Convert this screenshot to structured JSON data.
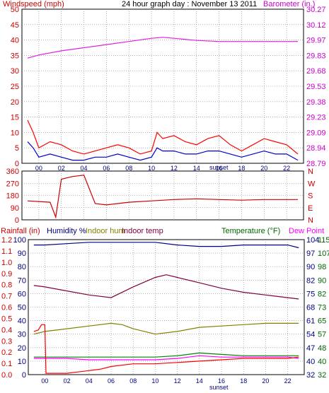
{
  "chart_data": [
    {
      "type": "line",
      "title": "24 hour graph day : November 13 2011",
      "ylabel_left": "Windspeed (mph)",
      "ylabel_right": "Barometer (in.)",
      "left_ticks": [
        "50",
        "45",
        "40",
        "35",
        "30",
        "25",
        "20",
        "15",
        "10",
        "5",
        "0"
      ],
      "right_ticks": [
        "30.27",
        "30.12",
        "29.97",
        "29.83",
        "29.68",
        "29.53",
        "29.38",
        "29.23",
        "29.09",
        "28.94",
        "28.79"
      ],
      "x_ticks": [
        "00",
        "02",
        "04",
        "06",
        "08",
        "10",
        "12",
        "14",
        "16",
        "18",
        "20",
        "22"
      ],
      "x_annotation": "sunset",
      "ylim_left": [
        0,
        50
      ],
      "ylim_right": [
        28.79,
        30.27
      ],
      "grid": true,
      "colors": {
        "wind_gust": "#ff0000",
        "wind_avg": "#0000cc",
        "barometer": "#e020e0",
        "left_axis": "#cc0000",
        "right_axis": "#cc00cc"
      },
      "series": [
        {
          "name": "Barometer (in.)",
          "x": [
            -1,
            0,
            2,
            4,
            6,
            8,
            10,
            11,
            12,
            14,
            16,
            18,
            20,
            22,
            23
          ],
          "values": [
            29.8,
            29.83,
            29.87,
            29.9,
            29.93,
            29.96,
            29.99,
            30.0,
            29.99,
            29.97,
            29.96,
            29.96,
            29.96,
            29.96,
            29.96
          ]
        },
        {
          "name": "Gust",
          "x": [
            -1,
            -0.5,
            0,
            1,
            2,
            3,
            4,
            5,
            6,
            7,
            8,
            9,
            10,
            10.5,
            11,
            12,
            13,
            14,
            15,
            16,
            17,
            18,
            19,
            20,
            21,
            22,
            23
          ],
          "values": [
            14,
            10,
            5,
            7,
            6,
            4,
            3,
            4,
            5,
            6,
            5,
            3,
            4,
            10,
            8,
            9,
            7,
            6,
            8,
            9,
            6,
            4,
            6,
            8,
            7,
            6,
            3
          ]
        },
        {
          "name": "Average",
          "x": [
            -1,
            -0.5,
            0,
            1,
            2,
            3,
            4,
            5,
            6,
            7,
            8,
            9,
            10,
            10.5,
            11,
            12,
            13,
            14,
            15,
            16,
            17,
            18,
            19,
            20,
            21,
            22,
            23
          ],
          "values": [
            7,
            5,
            2,
            3,
            2,
            1,
            1,
            2,
            2,
            3,
            2,
            1,
            2,
            5,
            4,
            4,
            3,
            3,
            4,
            4,
            3,
            2,
            3,
            4,
            3,
            3,
            1
          ]
        }
      ]
    },
    {
      "type": "line",
      "ylabel": "Wind direction",
      "left_ticks": [
        "360",
        "270",
        "180",
        "90",
        "0"
      ],
      "right_ticks": [
        "N",
        "W",
        "S",
        "E",
        "N"
      ],
      "ylim": [
        0,
        360
      ],
      "colors": {
        "direction": "#cc0000"
      },
      "series": [
        {
          "name": "Direction",
          "x": [
            -1,
            1,
            1.5,
            2,
            3,
            4,
            5,
            6,
            8,
            10,
            12,
            14,
            16,
            18,
            20,
            22,
            23
          ],
          "values": [
            140,
            130,
            20,
            300,
            320,
            330,
            120,
            110,
            130,
            140,
            150,
            155,
            150,
            145,
            150,
            150,
            150
          ]
        }
      ]
    },
    {
      "type": "line",
      "labels_left": [
        "Rainfall (in)",
        "Humidity %",
        "Indoor hum",
        "Indoor temp"
      ],
      "labels_right": [
        "Temperature (°F)",
        "Dew Point"
      ],
      "rain_ticks": [
        "1.2",
        "1.1",
        "1.0",
        "0.9",
        "0.8",
        "0.7",
        "0.6",
        "0.5",
        "0.4",
        "0.3",
        "0.2",
        "0.1",
        "0.0"
      ],
      "hum_ticks": [
        "100",
        "90",
        "80",
        "70",
        "60",
        "50",
        "40",
        "30",
        "20",
        "10",
        "0"
      ],
      "in_temp_ticks": [
        "104",
        "97",
        "90",
        "82",
        "75",
        "68",
        "61",
        "54",
        "47",
        "40",
        "32"
      ],
      "temp_ticks": [
        "115",
        "107",
        "98",
        "90",
        "82",
        "73",
        "65",
        "57",
        "48",
        "40",
        "32"
      ],
      "x_ticks": [
        "00",
        "02",
        "04",
        "06",
        "08",
        "10",
        "12",
        "14",
        "16",
        "18",
        "20",
        "22"
      ],
      "x_annotation": "sunset",
      "ylim_left": [
        0,
        100
      ],
      "colors": {
        "rain": "#ff0000",
        "humidity": "#000080",
        "indoor_hum": "#808000",
        "indoor_temp": "#800040",
        "temperature": "#008000",
        "dew_point": "#ff00ff",
        "rain_axis": "#cc0000",
        "hum_axis": "#000080",
        "temp_axis": "#006600"
      },
      "series": [
        {
          "name": "Humidity",
          "x": [
            -1,
            0,
            2,
            4,
            6,
            8,
            10,
            12,
            14,
            16,
            18,
            20,
            22,
            23
          ],
          "values": [
            96,
            96,
            97,
            98,
            98,
            98,
            98,
            96,
            95,
            95,
            96,
            96,
            96,
            94
          ]
        },
        {
          "name": "Indoor temp",
          "x": [
            -1,
            0,
            2,
            4,
            6,
            8,
            10,
            11,
            12,
            14,
            16,
            18,
            20,
            22,
            23
          ],
          "values": [
            66,
            65,
            62,
            59,
            57,
            65,
            72,
            74,
            72,
            68,
            64,
            61,
            59,
            57,
            56
          ]
        },
        {
          "name": "Indoor hum",
          "x": [
            -1,
            0,
            2,
            4,
            6,
            7,
            8,
            10,
            12,
            14,
            16,
            18,
            20,
            22,
            23
          ],
          "values": [
            30,
            32,
            34,
            36,
            38,
            37,
            34,
            30,
            32,
            35,
            36,
            37,
            38,
            38,
            38
          ]
        },
        {
          "name": "Temperature",
          "x": [
            -1,
            0,
            2,
            4,
            6,
            8,
            10,
            12,
            14,
            16,
            18,
            20,
            22,
            23
          ],
          "values": [
            13,
            13,
            13,
            13,
            13,
            13,
            13,
            14,
            16,
            15,
            14,
            14,
            14,
            14
          ]
        },
        {
          "name": "Dew Point",
          "x": [
            -1,
            0,
            2,
            4,
            6,
            8,
            10,
            12,
            14,
            16,
            18,
            20,
            22,
            23
          ],
          "values": [
            12,
            12,
            12,
            11,
            11,
            11,
            11,
            12,
            14,
            13,
            13,
            13,
            13,
            12
          ]
        },
        {
          "name": "Rainfall",
          "x": [
            -1,
            -0.6,
            -0.3,
            0,
            0.1,
            2,
            3,
            4,
            5,
            6,
            8,
            10,
            12,
            14,
            16,
            18,
            20,
            22,
            23
          ],
          "values": [
            32,
            33,
            37,
            37,
            1,
            1,
            2,
            3,
            4,
            6,
            8,
            8,
            9,
            10,
            11,
            12,
            12,
            12,
            13
          ]
        }
      ]
    }
  ]
}
